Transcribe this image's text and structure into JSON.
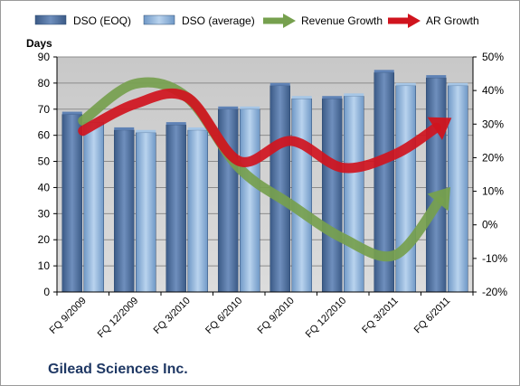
{
  "chart_data": {
    "type": "bar",
    "title": "",
    "caption": "Gilead Sciences Inc.",
    "ylabel": "Days",
    "y2label": "",
    "ylim": [
      0,
      90
    ],
    "yticks": [
      0,
      10,
      20,
      30,
      40,
      50,
      60,
      70,
      80,
      90
    ],
    "y2lim": [
      -20,
      50
    ],
    "y2ticks": [
      "-20%",
      "-10%",
      "0%",
      "10%",
      "20%",
      "30%",
      "40%",
      "50%"
    ],
    "grid": true,
    "legend_position": "top",
    "categories": [
      "FQ 9/2009",
      "FQ 12/2009",
      "FQ 3/2010",
      "FQ 6/2010",
      "FQ 9/2010",
      "FQ 12/2010",
      "FQ 3/2011",
      "FQ 6/2011"
    ],
    "series": [
      {
        "name": "DSO (EOQ)",
        "type": "bar",
        "axis": "left",
        "color": "#4f6f9f",
        "values": [
          68,
          62,
          64,
          70,
          79,
          74,
          84,
          82
        ]
      },
      {
        "name": "DSO (average)",
        "type": "bar",
        "axis": "left",
        "color": "#8fb3d9",
        "values": [
          65,
          61,
          62,
          70,
          74,
          75,
          79,
          79
        ]
      },
      {
        "name": "Revenue Growth",
        "type": "line",
        "axis": "right",
        "unit": "%",
        "color": "#76a04e",
        "values": [
          31,
          42,
          38,
          17,
          6,
          -4,
          -9,
          10
        ]
      },
      {
        "name": "AR Growth",
        "type": "line",
        "axis": "right",
        "unit": "%",
        "color": "#d0141e",
        "values": [
          28,
          36,
          38,
          19,
          25,
          17,
          21,
          31
        ]
      }
    ]
  }
}
